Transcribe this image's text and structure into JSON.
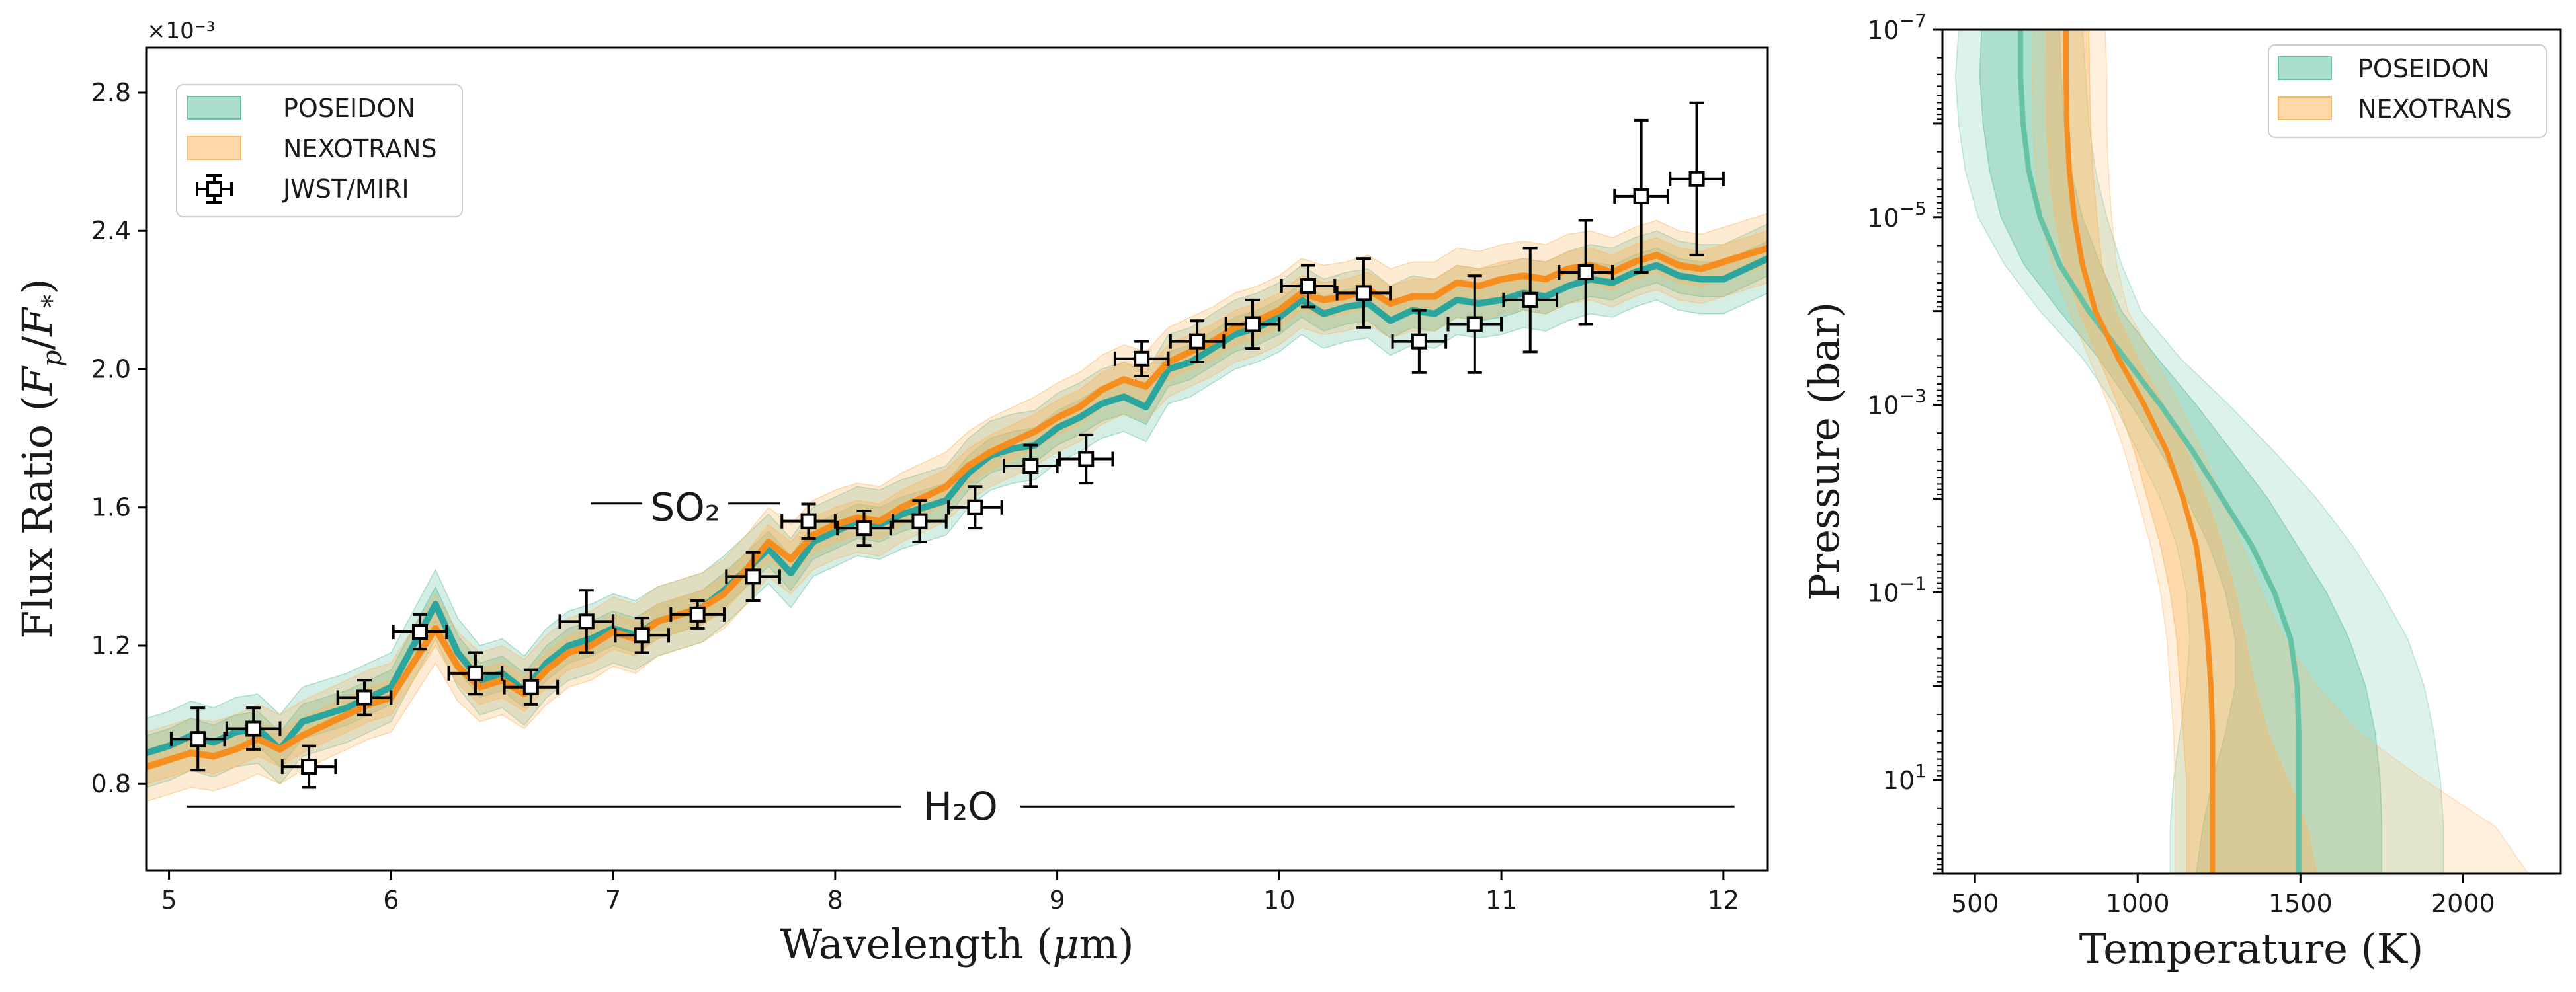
{
  "chart_data": [
    {
      "type": "line",
      "id": "spectrum",
      "title": "",
      "xlabel": "Wavelength (μm)",
      "ylabel": "Flux Ratio (F_p/F_*)",
      "xlabel_parts": [
        "Wavelength (",
        "μ",
        "m)"
      ],
      "ylabel_parts": [
        "Flux Ratio (",
        "F",
        "p",
        "/",
        "F",
        "*",
        ")"
      ],
      "y_scale_label": "×10⁻³",
      "xlim": [
        4.9,
        12.2
      ],
      "ylim": [
        0.55,
        2.93
      ],
      "x_ticks": [
        5,
        6,
        7,
        8,
        9,
        10,
        11,
        12
      ],
      "y_ticks": [
        0.8,
        1.2,
        1.6,
        2.0,
        2.4,
        2.8
      ],
      "y_tick_labels": [
        "0.8",
        "1.2",
        "1.6",
        "2.0",
        "2.4",
        "2.8"
      ],
      "legend": {
        "position": "top-left",
        "entries": [
          {
            "label": "POSEIDON",
            "kind": "band",
            "color": "#66c2a5"
          },
          {
            "label": "NEXOTRANS",
            "kind": "band",
            "color": "#fdb863"
          },
          {
            "label": "JWST/MIRI",
            "kind": "errorbar",
            "color": "#000000"
          }
        ]
      },
      "annotations": [
        {
          "text": "SO₂",
          "x_start": 6.9,
          "x_end": 7.75,
          "y": 1.6
        },
        {
          "text": "H₂O",
          "x_start": 5.08,
          "x_end": 12.05,
          "y": 0.735
        }
      ],
      "series": [
        {
          "name": "POSEIDON",
          "color": "#2ba69f",
          "band_color": "#66c2a5",
          "x": [
            4.9,
            5.0,
            5.1,
            5.2,
            5.3,
            5.4,
            5.5,
            5.6,
            5.7,
            5.8,
            5.9,
            6.0,
            6.1,
            6.2,
            6.3,
            6.4,
            6.5,
            6.6,
            6.7,
            6.8,
            6.9,
            7.0,
            7.1,
            7.2,
            7.3,
            7.4,
            7.5,
            7.6,
            7.7,
            7.8,
            7.9,
            8.0,
            8.1,
            8.2,
            8.3,
            8.4,
            8.5,
            8.6,
            8.7,
            8.8,
            8.9,
            9.0,
            9.1,
            9.2,
            9.3,
            9.4,
            9.5,
            9.6,
            9.7,
            9.8,
            9.9,
            10.0,
            10.1,
            10.2,
            10.3,
            10.4,
            10.5,
            10.6,
            10.7,
            10.8,
            10.9,
            11.0,
            11.1,
            11.2,
            11.3,
            11.4,
            11.5,
            11.6,
            11.7,
            11.8,
            11.9,
            12.0,
            12.1,
            12.2
          ],
          "values": [
            0.89,
            0.91,
            0.94,
            0.92,
            0.95,
            0.96,
            0.9,
            0.98,
            1.0,
            1.02,
            1.05,
            1.08,
            1.2,
            1.32,
            1.18,
            1.1,
            1.12,
            1.07,
            1.15,
            1.2,
            1.22,
            1.25,
            1.23,
            1.27,
            1.29,
            1.31,
            1.36,
            1.42,
            1.48,
            1.41,
            1.5,
            1.53,
            1.56,
            1.55,
            1.58,
            1.6,
            1.62,
            1.7,
            1.75,
            1.77,
            1.78,
            1.83,
            1.86,
            1.9,
            1.92,
            1.89,
            2.0,
            2.02,
            2.06,
            2.1,
            2.12,
            2.15,
            2.2,
            2.16,
            2.18,
            2.19,
            2.14,
            2.17,
            2.16,
            2.2,
            2.19,
            2.2,
            2.22,
            2.21,
            2.24,
            2.26,
            2.25,
            2.28,
            2.3,
            2.27,
            2.26,
            2.26,
            2.29,
            2.32
          ],
          "band_inner": 0.05,
          "band_outer": 0.1
        },
        {
          "name": "NEXOTRANS",
          "color": "#f68e1f",
          "band_color": "#fdb863",
          "x": [
            4.9,
            5.0,
            5.1,
            5.2,
            5.3,
            5.4,
            5.5,
            5.6,
            5.7,
            5.8,
            5.9,
            6.0,
            6.1,
            6.2,
            6.3,
            6.4,
            6.5,
            6.6,
            6.7,
            6.8,
            6.9,
            7.0,
            7.1,
            7.2,
            7.3,
            7.4,
            7.5,
            7.6,
            7.7,
            7.8,
            7.9,
            8.0,
            8.1,
            8.2,
            8.3,
            8.4,
            8.5,
            8.6,
            8.7,
            8.8,
            8.9,
            9.0,
            9.1,
            9.2,
            9.3,
            9.4,
            9.5,
            9.6,
            9.7,
            9.8,
            9.9,
            10.0,
            10.1,
            10.2,
            10.3,
            10.4,
            10.5,
            10.6,
            10.7,
            10.8,
            10.9,
            11.0,
            11.1,
            11.2,
            11.3,
            11.4,
            11.5,
            11.6,
            11.7,
            11.8,
            11.9,
            12.0,
            12.1,
            12.2
          ],
          "values": [
            0.85,
            0.87,
            0.89,
            0.88,
            0.9,
            0.93,
            0.9,
            0.94,
            0.97,
            1.0,
            1.03,
            1.05,
            1.15,
            1.25,
            1.14,
            1.08,
            1.1,
            1.06,
            1.13,
            1.18,
            1.2,
            1.24,
            1.22,
            1.27,
            1.29,
            1.31,
            1.35,
            1.42,
            1.5,
            1.45,
            1.52,
            1.55,
            1.57,
            1.56,
            1.6,
            1.63,
            1.66,
            1.72,
            1.76,
            1.79,
            1.82,
            1.86,
            1.89,
            1.94,
            1.97,
            1.95,
            2.02,
            2.05,
            2.08,
            2.12,
            2.14,
            2.17,
            2.22,
            2.2,
            2.21,
            2.23,
            2.19,
            2.21,
            2.21,
            2.25,
            2.24,
            2.26,
            2.27,
            2.26,
            2.29,
            2.3,
            2.28,
            2.31,
            2.33,
            2.3,
            2.29,
            2.31,
            2.33,
            2.35
          ],
          "band_inner": 0.05,
          "band_outer": 0.1
        },
        {
          "name": "JWST/MIRI",
          "type": "errorbar",
          "color": "#000000",
          "x": [
            5.13,
            5.38,
            5.63,
            5.88,
            6.13,
            6.38,
            6.63,
            6.88,
            7.13,
            7.38,
            7.63,
            7.88,
            8.13,
            8.38,
            8.63,
            8.88,
            9.13,
            9.38,
            9.63,
            9.88,
            10.13,
            10.38,
            10.63,
            10.88,
            11.13,
            11.38,
            11.63,
            11.88
          ],
          "values": [
            0.93,
            0.96,
            0.85,
            1.05,
            1.24,
            1.12,
            1.08,
            1.27,
            1.23,
            1.29,
            1.4,
            1.56,
            1.54,
            1.56,
            1.6,
            1.72,
            1.74,
            2.03,
            2.08,
            2.13,
            2.24,
            2.22,
            2.08,
            2.13,
            2.2,
            2.28,
            2.5,
            2.55
          ],
          "y_err": [
            0.09,
            0.06,
            0.06,
            0.05,
            0.05,
            0.06,
            0.05,
            0.09,
            0.05,
            0.04,
            0.07,
            0.05,
            0.05,
            0.06,
            0.06,
            0.06,
            0.07,
            0.05,
            0.06,
            0.07,
            0.06,
            0.1,
            0.09,
            0.14,
            0.15,
            0.15,
            0.22,
            0.22
          ],
          "x_err": 0.12
        }
      ]
    },
    {
      "type": "line",
      "id": "pt-profile",
      "title": "",
      "xlabel": "Temperature (K)",
      "ylabel": "Pressure (bar)",
      "x_scale": "linear",
      "y_scale": "log",
      "y_inverted": true,
      "xlim": [
        400,
        2300
      ],
      "ylim_log10": [
        -7,
        2
      ],
      "x_ticks": [
        500,
        1000,
        1500,
        2000
      ],
      "x_tick_labels": [
        "500",
        "1000",
        "1500",
        "2000"
      ],
      "y_ticks_log10": [
        -7,
        -5,
        -3,
        -1,
        1
      ],
      "y_tick_labels": [
        {
          "base": "10",
          "exp": "−7"
        },
        {
          "base": "10",
          "exp": "−5"
        },
        {
          "base": "10",
          "exp": "−3"
        },
        {
          "base": "10",
          "exp": "−1"
        },
        {
          "base": "10",
          "exp": "1"
        }
      ],
      "legend": {
        "position": "top-right",
        "entries": [
          {
            "label": "POSEIDON",
            "kind": "band",
            "color": "#66c2a5"
          },
          {
            "label": "NEXOTRANS",
            "kind": "band",
            "color": "#fdb863"
          }
        ]
      },
      "series": [
        {
          "name": "POSEIDON",
          "color": "#66c2a5",
          "log10_pressure": [
            -7,
            -6.5,
            -6,
            -5.5,
            -5,
            -4.5,
            -4,
            -3.5,
            -3,
            -2.5,
            -2,
            -1.5,
            -1,
            -0.5,
            0,
            0.5,
            1,
            1.5,
            2
          ],
          "temperature": [
            640,
            640,
            648,
            665,
            700,
            760,
            850,
            960,
            1070,
            1170,
            1260,
            1350,
            1420,
            1470,
            1490,
            1495,
            1495,
            1495,
            1495
          ],
          "band_inner_low": [
            520,
            515,
            525,
            545,
            580,
            650,
            760,
            880,
            980,
            1070,
            1150,
            1220,
            1270,
            1300,
            1300,
            1270,
            1230,
            1200,
            1180
          ],
          "band_inner_high": [
            760,
            765,
            775,
            795,
            830,
            885,
            950,
            1060,
            1180,
            1290,
            1400,
            1490,
            1580,
            1650,
            1700,
            1730,
            1745,
            1750,
            1750
          ],
          "band_outer_low": [
            450,
            440,
            450,
            470,
            510,
            590,
            700,
            830,
            930,
            1000,
            1070,
            1120,
            1150,
            1160,
            1150,
            1130,
            1110,
            1100,
            1100
          ],
          "band_outer_high": [
            830,
            840,
            850,
            870,
            905,
            950,
            1010,
            1130,
            1280,
            1420,
            1550,
            1660,
            1750,
            1830,
            1880,
            1910,
            1930,
            1940,
            1940
          ]
        },
        {
          "name": "NEXOTRANS",
          "color": "#f68e1f",
          "log10_pressure": [
            -7,
            -6.5,
            -6,
            -5.5,
            -5,
            -4.5,
            -4,
            -3.5,
            -3,
            -2.5,
            -2,
            -1.5,
            -1,
            -0.5,
            0,
            0.5,
            1,
            1.5,
            2
          ],
          "temperature": [
            780,
            780,
            782,
            790,
            805,
            830,
            870,
            940,
            1020,
            1090,
            1140,
            1180,
            1200,
            1215,
            1225,
            1230,
            1230,
            1230,
            1230
          ],
          "band_inner_low": [
            720,
            718,
            720,
            728,
            745,
            775,
            820,
            880,
            940,
            990,
            1030,
            1070,
            1100,
            1120,
            1130,
            1140,
            1150,
            1150,
            1150
          ],
          "band_inner_high": [
            850,
            852,
            855,
            862,
            875,
            890,
            930,
            1000,
            1080,
            1150,
            1210,
            1260,
            1300,
            1330,
            1360,
            1400,
            1460,
            1520,
            1550
          ],
          "band_outer_low": [
            680,
            675,
            678,
            686,
            700,
            735,
            790,
            850,
            910,
            960,
            1000,
            1040,
            1070,
            1090,
            1100,
            1110,
            1115,
            1115,
            1115
          ],
          "band_outer_high": [
            900,
            905,
            905,
            910,
            920,
            935,
            970,
            1050,
            1130,
            1200,
            1260,
            1320,
            1380,
            1450,
            1550,
            1680,
            1880,
            2100,
            2200
          ]
        }
      ]
    }
  ]
}
